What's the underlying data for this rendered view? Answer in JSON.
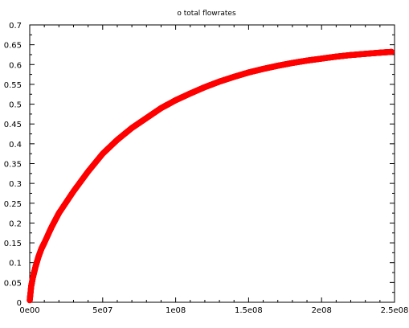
{
  "chart_data": {
    "type": "scatter",
    "title": "o total flowrates",
    "xlabel": "",
    "ylabel": "",
    "xlim": [
      0,
      250000000
    ],
    "ylim": [
      0,
      0.7
    ],
    "x_ticks": [
      0,
      50000000,
      100000000,
      150000000,
      200000000,
      250000000
    ],
    "x_tick_labels": [
      "0e00",
      "5e07",
      "1e08",
      "1.5e08",
      "2e08",
      "2.5e08"
    ],
    "y_ticks": [
      0,
      0.05,
      0.1,
      0.15,
      0.2,
      0.25,
      0.3,
      0.35,
      0.4,
      0.45,
      0.5,
      0.55,
      0.6,
      0.65,
      0.7
    ],
    "y_tick_labels": [
      "0",
      "0.05",
      "0.1",
      "0.15",
      "0.2",
      "0.25",
      "0.3",
      "0.35",
      "0.4",
      "0.45",
      "0.5",
      "0.55",
      "0.6",
      "0.65",
      "0.7"
    ],
    "grid": false,
    "marker": "o",
    "series": [
      {
        "color": "#ff0000",
        "x": [
          0,
          1000000,
          2000000,
          4000000,
          6000000,
          8000000,
          10000000,
          15000000,
          20000000,
          30000000,
          40000000,
          50000000,
          60000000,
          70000000,
          80000000,
          90000000,
          100000000,
          110000000,
          120000000,
          130000000,
          140000000,
          150000000,
          160000000,
          170000000,
          180000000,
          190000000,
          200000000,
          210000000,
          220000000,
          230000000,
          240000000,
          248000000
        ],
        "y": [
          0.005,
          0.04,
          0.06,
          0.09,
          0.115,
          0.135,
          0.15,
          0.19,
          0.225,
          0.28,
          0.33,
          0.375,
          0.41,
          0.44,
          0.465,
          0.49,
          0.51,
          0.527,
          0.543,
          0.557,
          0.569,
          0.58,
          0.589,
          0.597,
          0.604,
          0.61,
          0.615,
          0.62,
          0.624,
          0.627,
          0.63,
          0.632
        ]
      }
    ]
  }
}
